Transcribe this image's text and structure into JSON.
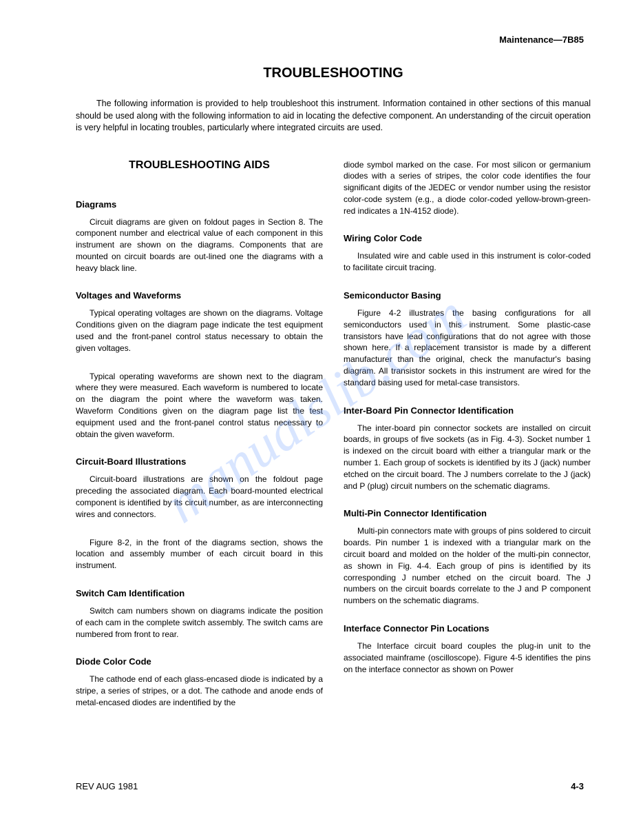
{
  "header": {
    "document_ref": "Maintenance—7B85"
  },
  "main_title": "TROUBLESHOOTING",
  "intro": "The following information is provided to help troubleshoot this instrument. Information contained in other sections of this manual should be used along with the following information to aid in locating the defective component. An understanding of the circuit operation is very helpful in locating troubles, particularly where integrated circuits are used.",
  "left_column": {
    "section_title": "TROUBLESHOOTING AIDS",
    "sections": [
      {
        "title": "Diagrams",
        "paragraphs": [
          "Circuit diagrams are given on foldout pages in Section 8. The component number and electrical value of each component in this instrument are shown on the diagrams. Components that are mounted on circuit boards are out-lined one the diagrams with a heavy black line."
        ]
      },
      {
        "title": "Voltages and Waveforms",
        "paragraphs": [
          "Typical operating voltages are shown on the diagrams. Voltage Conditions given on the diagram page indicate the test equipment used and the front-panel control status necessary to obtain the given voltages.",
          "Typical operating waveforms are shown next to the diagram where they were measured. Each waveform is numbered to locate on the diagram the point where the waveform was taken. Waveform Conditions given on the diagram page list the test equipment used and the front-panel control status necessary to obtain the given waveform."
        ]
      },
      {
        "title": "Circuit-Board Illustrations",
        "paragraphs": [
          "Circuit-board illustrations are shown on the foldout page preceding the associated diagram. Each board-mounted electrical component is identified by its circuit number, as are interconnecting wires and connectors.",
          "Figure 8-2, in the front of the diagrams section, shows the location and assembly mumber of each circuit board in this instrument."
        ]
      },
      {
        "title": "Switch Cam Identification",
        "paragraphs": [
          "Switch cam numbers shown on diagrams indicate the position of each cam in the complete switch assembly. The switch cams are numbered from front to rear."
        ]
      },
      {
        "title": "Diode Color Code",
        "paragraphs": [
          "The cathode end of each glass-encased diode is indicated by a stripe, a series of stripes, or a dot. The cathode and anode ends of metal-encased diodes are indentified by the"
        ]
      }
    ]
  },
  "right_column": {
    "continuation": "diode symbol marked on the case. For most silicon or germanium diodes with a series of stripes, the color code identifies the four significant digits of the JEDEC or vendor number using the resistor color-code system (e.g., a diode color-coded yellow-brown-green-red indicates a 1N-4152 diode).",
    "sections": [
      {
        "title": "Wiring Color Code",
        "paragraphs": [
          "Insulated wire and cable used in this instrument is color-coded to facilitate circuit tracing."
        ]
      },
      {
        "title": "Semiconductor Basing",
        "paragraphs": [
          "Figure 4-2 illustrates the basing configurations for all semiconductors used in this instrument. Some plastic-case transistors have lead configurations that do not agree with those shown here. If a replacement transistor is made by a different manufacturer than the original, check the manufactur's basing diagram. All transistor sockets in this instrument are wired for the standard basing used for metal-case transistors."
        ]
      },
      {
        "title": "Inter-Board Pin Connector Identification",
        "paragraphs": [
          "The inter-board pin connector sockets are installed on circuit boards, in groups of five sockets (as in Fig. 4-3). Socket number 1 is indexed on the circuit board with either a triangular mark or the number 1. Each group of sockets is identified by its J (jack) number etched on the circuit board. The J numbers correlate to the J (jack) and P (plug) circuit numbers on the schematic diagrams."
        ]
      },
      {
        "title": "Multi-Pin Connector Identification",
        "paragraphs": [
          "Multi-pin connectors mate with groups of pins soldered to circuit boards. Pin number 1 is indexed with a triangular mark on the circuit board and molded on the holder of the multi-pin connector, as shown in Fig. 4-4. Each group of pins is identified by its corresponding J number etched on the circuit board. The J numbers on the circuit boards correlate to the J and P component numbers on the schematic diagrams."
        ]
      },
      {
        "title": "Interface Connector Pin Locations",
        "paragraphs": [
          "The Interface circuit board couples the plug-in unit to the associated mainframe (oscilloscope). Figure 4-5 identifies the pins on the interface connector as shown on Power"
        ]
      }
    ]
  },
  "footer": {
    "revision": "REV AUG 1981",
    "page_number": "4-3"
  },
  "watermark_text": "manualslib.com"
}
